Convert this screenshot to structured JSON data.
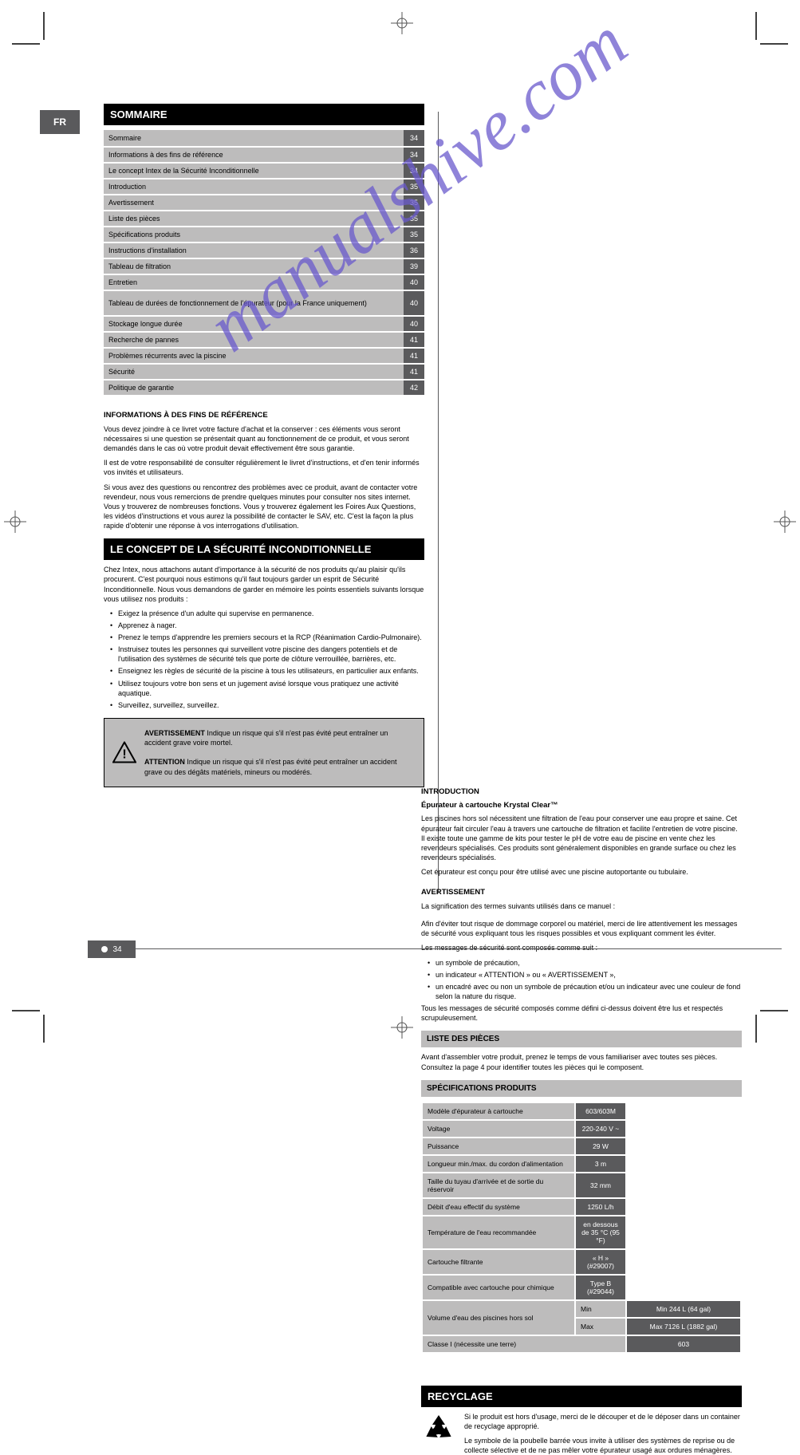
{
  "watermark_text": "manualshive.com",
  "lang_tab": "FR",
  "page_number": "34",
  "toc_header": "SOMMAIRE",
  "toc": [
    {
      "label": "Sommaire",
      "page": "34"
    },
    {
      "label": "Informations à des fins de référence",
      "page": "34"
    },
    {
      "label": "Le concept Intex de la Sécurité Inconditionnelle",
      "page": "34"
    },
    {
      "label": "Introduction",
      "page": "35"
    },
    {
      "label": "Avertissement",
      "page": "35"
    },
    {
      "label": "Liste des pièces",
      "page": "35"
    },
    {
      "label": "Spécifications produits",
      "page": "35"
    },
    {
      "label": "Instructions d'installation",
      "page": "36"
    },
    {
      "label": "Tableau de filtration",
      "page": "39"
    },
    {
      "label": "Entretien",
      "page": "40"
    },
    {
      "label": "Tableau de durées de fonctionnement de l'épurateur (pour la France uniquement)",
      "page": "40"
    },
    {
      "label": "Stockage longue durée",
      "page": "40"
    },
    {
      "label": "Recherche de pannes",
      "page": "41"
    },
    {
      "label": "Problèmes récurrents avec la piscine",
      "page": "41"
    },
    {
      "label": "Sécurité",
      "page": "41"
    },
    {
      "label": "Politique de garantie",
      "page": "42"
    }
  ],
  "intro_block": {
    "title": "INFORMATIONS À DES FINS DE RÉFÉRENCE",
    "p1": "Vous devez joindre à ce livret votre facture d'achat et la conserver : ces éléments vous seront nécessaires si une question se présentait quant au fonctionnement de ce produit, et vous seront demandés dans le cas où votre produit devait effectivement être sous garantie.",
    "p2": "Il est de votre responsabilité de consulter régulièrement le livret d'instructions, et d'en tenir informés vos invités et utilisateurs.",
    "p3": "Si vous avez des questions ou rencontrez des problèmes avec ce produit, avant de contacter votre revendeur, nous vous remercions de prendre quelques minutes pour consulter nos sites internet. Vous y trouverez de nombreuses fonctions. Vous y trouverez également les Foires Aux Questions, les vidéos d'instructions et vous aurez la possibilité de contacter le SAV, etc. C'est la façon la plus rapide d'obtenir une réponse à vos interrogations d'utilisation."
  },
  "concept_block": {
    "title": "LE CONCEPT DE LA SÉCURITÉ INCONDITIONNELLE",
    "p1": "Chez Intex, nous attachons autant d'importance à la sécurité de nos produits qu'au plaisir qu'ils procurent. C'est pourquoi nous estimons qu'il faut toujours garder un esprit de Sécurité Inconditionnelle. Nous vous demandons de garder en mémoire les points essentiels suivants lorsque vous utilisez nos produits :",
    "items": [
      "Exigez la présence d'un adulte qui supervise en permanence.",
      "Apprenez à nager.",
      "Prenez le temps d'apprendre les premiers secours et la RCP (Réanimation Cardio-Pulmonaire).",
      "Instruisez toutes les personnes qui surveillent votre piscine des dangers potentiels et de l'utilisation des systèmes de sécurité tels que porte de clôture verrouillée, barrières, etc.",
      "Enseignez les règles de sécurité de la piscine à tous les utilisateurs, en particulier aux enfants.",
      "Utilisez toujours votre bon sens et un jugement avisé lorsque vous pratiquez une activité aquatique.",
      "Surveillez, surveillez, surveillez."
    ]
  },
  "introduction": {
    "heading": "INTRODUCTION",
    "sub_heading": "Épurateur à cartouche Krystal Clear™",
    "p1": "Les piscines hors sol nécessitent une filtration de l'eau pour conserver une eau propre et saine. Cet épurateur fait circuler l'eau à travers une cartouche de filtration et facilite l'entretien de votre piscine. Il existe toute une gamme de kits pour tester le pH de votre eau de piscine en vente chez les revendeurs spécialisés. Ces produits sont généralement disponibles en grande surface ou chez les revendeurs spécialisés.",
    "p2": "Cet épurateur est conçu pour être utilisé avec une piscine autoportante ou tubulaire."
  },
  "warning": {
    "heading": "AVERTISSEMENT",
    "lead": "La signification des termes suivants utilisés dans ce manuel :",
    "warning_label": "AVERTISSEMENT",
    "warning_text": "Indique un risque qui s'il n'est pas évité peut entraîner un accident grave voire mortel.",
    "attention_label": "ATTENTION",
    "attention_text": "Indique un risque qui s'il n'est pas évité peut entraîner un accident grave ou des dégâts matériels, mineurs ou modérés."
  },
  "right_top": {
    "p1": "Afin d'éviter tout risque de dommage corporel ou matériel, merci de lire attentivement les messages de sécurité vous expliquant tous les risques possibles et vous expliquant comment les éviter.",
    "list_head": "Les messages de sécurité sont composés comme suit :",
    "items": [
      "un symbole de précaution,",
      "un indicateur « ATTENTION » ou « AVERTISSEMENT »,",
      "un encadré avec ou non un symbole de précaution et/ou un indicateur avec une couleur de fond selon la nature du risque."
    ],
    "tail": "Tous les messages de sécurité composés comme défini ci-dessus doivent être lus et respectés scrupuleusement."
  },
  "parts_list": {
    "heading": "LISTE DES PIÈCES",
    "p1": "Avant d'assembler votre produit, prenez le temps de vous familiariser avec toutes ses pièces. Consultez la page 4 pour identifier toutes les pièces qui le composent."
  },
  "specs": {
    "heading": "SPÉCIFICATIONS PRODUITS",
    "rows": [
      {
        "key": "Modèle d'épurateur à cartouche",
        "val": "603/603M"
      },
      {
        "key": "Voltage",
        "val": "220-240 V ~"
      },
      {
        "key": "Puissance",
        "val": "29 W"
      },
      {
        "key": "Longueur min./max. du cordon d'alimentation",
        "val": "3 m"
      },
      {
        "key": "Taille du tuyau d'arrivée et de sortie du réservoir",
        "val": "32 mm"
      },
      {
        "key": "Débit d'eau effectif du système",
        "val": "1250 L/h"
      },
      {
        "key": "Température de l'eau recommandée",
        "val": "en dessous de 35 °C (95 °F)"
      },
      {
        "key": "Cartouche filtrante",
        "val": "« H » (#29007)"
      },
      {
        "key": "Compatible avec cartouche pour chimique",
        "val": "Type B (#29044)"
      }
    ],
    "volume_key": "Volume d'eau des piscines hors sol",
    "volume_min": "Min 244 L (64 gal)",
    "volume_max": "Max 7126 L (1882 gal)",
    "class_key": "Classe I (nécessite une terre)",
    "class_val": "603"
  },
  "recycle": {
    "heading": "RECYCLAGE",
    "p1": "Si le produit est hors d'usage, merci de le découper et de le déposer dans un container de recyclage approprié.",
    "p2": "Le symbole de la poubelle barrée vous invite à utiliser des systèmes de reprise ou de collecte sélective et de ne pas mêler votre épurateur usagé aux ordures ménagères."
  },
  "colors": {
    "dark": "#5a5a5c",
    "light": "#bdbcbc",
    "black": "#000000",
    "watermark": "#6a5acd"
  }
}
